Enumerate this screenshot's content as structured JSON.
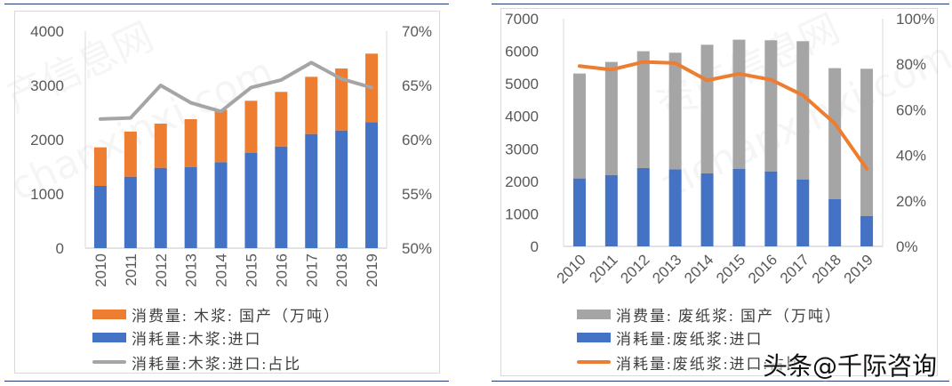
{
  "chart_data": [
    {
      "type": "bar",
      "stacked": true,
      "categories": [
        "2010",
        "2011",
        "2012",
        "2013",
        "2014",
        "2015",
        "2016",
        "2017",
        "2018",
        "2019"
      ],
      "series": [
        {
          "name": "消耗量:木浆:进口",
          "kind": "bar",
          "axis": "left",
          "color": "#4472c4",
          "values": [
            1148,
            1317,
            1481,
            1497,
            1585,
            1754,
            1874,
            2104,
            2169,
            2322
          ]
        },
        {
          "name": "消费量: 木浆: 国产（万吨）",
          "kind": "bar",
          "axis": "left",
          "color": "#ed7d31",
          "values": [
            710,
            831,
            814,
            880,
            967,
            962,
            1006,
            1054,
            1142,
            1263
          ]
        },
        {
          "name": "消耗量:木浆:进口:占比",
          "kind": "line",
          "axis": "right",
          "color": "#a5a5a5",
          "values": [
            61.9,
            62.0,
            65.0,
            63.4,
            62.6,
            64.8,
            65.5,
            67.1,
            65.6,
            64.8
          ]
        }
      ],
      "legend_order": [
        1,
        0,
        2
      ],
      "yleft": {
        "lim": [
          0,
          4000
        ],
        "ticks": [
          "0",
          "1000",
          "2000",
          "3000",
          "4000"
        ]
      },
      "yright": {
        "lim": [
          50,
          70
        ],
        "ticks": [
          "50%",
          "55%",
          "60%",
          "65%",
          "70%"
        ]
      },
      "xlabel_rotation": "vertical",
      "grid": false,
      "legend_placement": "bottom"
    },
    {
      "type": "bar",
      "stacked": true,
      "categories": [
        "2010",
        "2011",
        "2012",
        "2013",
        "2014",
        "2015",
        "2016",
        "2017",
        "2018",
        "2019"
      ],
      "series": [
        {
          "name": "消耗量:废纸浆:进口",
          "kind": "bar",
          "axis": "left",
          "color": "#4472c4",
          "values": [
            2088,
            2188,
            2407,
            2370,
            2243,
            2388,
            2306,
            2060,
            1449,
            930
          ]
        },
        {
          "name": "消费量: 废纸浆: 国产（万吨）",
          "kind": "bar",
          "axis": "left",
          "color": "#a5a5a5",
          "values": [
            3227,
            3482,
            3593,
            3583,
            3956,
            3966,
            4030,
            4248,
            4030,
            4530
          ]
        },
        {
          "name": "消耗量:废纸浆:进口:占比",
          "kind": "line",
          "axis": "right",
          "color": "#ed7d31",
          "values": [
            79.2,
            77.6,
            81.0,
            80.5,
            72.9,
            75.8,
            73.2,
            66.4,
            54.0,
            34.1
          ]
        }
      ],
      "legend_order": [
        1,
        0,
        2
      ],
      "yleft": {
        "lim": [
          0,
          7000
        ],
        "ticks": [
          "0",
          "1000",
          "2000",
          "3000",
          "4000",
          "5000",
          "6000",
          "7000"
        ]
      },
      "yright": {
        "lim": [
          0,
          100
        ],
        "ticks": [
          "0%",
          "20%",
          "40%",
          "60%",
          "80%",
          "100%"
        ]
      },
      "xlabel_rotation": "diagonal",
      "grid": false,
      "legend_placement": "bottom"
    }
  ],
  "watermark": "头条@千际咨询",
  "background_watermarks": [
    "产信息网",
    "chanxinxi.com",
    "资产信息网",
    "zichanxinxi.com"
  ]
}
